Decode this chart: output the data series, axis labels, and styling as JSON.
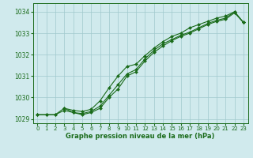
{
  "title": "Graphe pression niveau de la mer (hPa)",
  "bg_color": "#d0eaed",
  "grid_color": "#a0c8cc",
  "line_color": "#1a6b1a",
  "marker_color": "#1a6b1a",
  "xlim": [
    -0.5,
    23.5
  ],
  "ylim": [
    1028.8,
    1034.4
  ],
  "yticks": [
    1029,
    1030,
    1031,
    1032,
    1033,
    1034
  ],
  "xticks": [
    0,
    1,
    2,
    3,
    4,
    5,
    6,
    7,
    8,
    9,
    10,
    11,
    12,
    13,
    14,
    15,
    16,
    17,
    18,
    19,
    20,
    21,
    22,
    23
  ],
  "series1_x": [
    0,
    1,
    2,
    3,
    4,
    5,
    6,
    7,
    8,
    9,
    10,
    11,
    12,
    13,
    14,
    15,
    16,
    17,
    18,
    19,
    20,
    21,
    22,
    23
  ],
  "series1_y": [
    1029.2,
    1029.2,
    1029.2,
    1029.5,
    1029.3,
    1029.2,
    1029.3,
    1029.5,
    1030.0,
    1030.4,
    1031.0,
    1031.2,
    1031.7,
    1032.1,
    1032.4,
    1032.65,
    1032.85,
    1033.0,
    1033.2,
    1033.4,
    1033.55,
    1033.65,
    1033.95,
    1033.5
  ],
  "series2_x": [
    0,
    1,
    2,
    3,
    4,
    5,
    6,
    7,
    8,
    9,
    10,
    11,
    12,
    13,
    14,
    15,
    16,
    17,
    18,
    19,
    20,
    21,
    22,
    23
  ],
  "series2_y": [
    1029.2,
    1029.2,
    1029.2,
    1029.4,
    1029.3,
    1029.25,
    1029.35,
    1029.6,
    1030.1,
    1030.6,
    1031.1,
    1031.3,
    1031.8,
    1032.2,
    1032.5,
    1032.7,
    1032.9,
    1033.05,
    1033.25,
    1033.45,
    1033.6,
    1033.7,
    1034.0,
    1033.5
  ],
  "series3_x": [
    3,
    4,
    5,
    6,
    7,
    8,
    9,
    10,
    11,
    12,
    13,
    14,
    15,
    16,
    17,
    18,
    19,
    20,
    21,
    22,
    23
  ],
  "series3_y": [
    1029.5,
    1029.4,
    1029.35,
    1029.45,
    1029.85,
    1030.45,
    1031.0,
    1031.45,
    1031.55,
    1031.95,
    1032.3,
    1032.6,
    1032.85,
    1033.0,
    1033.25,
    1033.4,
    1033.55,
    1033.7,
    1033.8,
    1034.0,
    1033.5
  ]
}
